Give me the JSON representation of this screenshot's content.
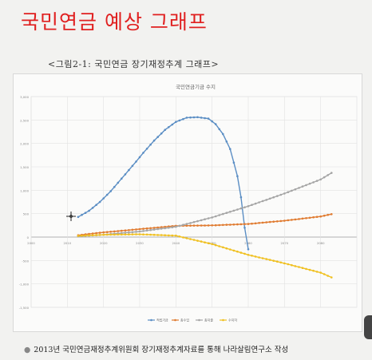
{
  "page": {
    "title": "국민연금 예상 그래프",
    "figure_caption": "<그림2-1: 국민연금 장기재정추계 그래프>",
    "source_note": "2013년 국민연금재정추계위원회 장기재정추계자료를 통해 나라살림연구소 작성"
  },
  "chart_data": {
    "type": "line",
    "title": "국민연금기금 수지",
    "xlim": [
      2000,
      2090
    ],
    "ylim": [
      -1500,
      3000
    ],
    "x_ticks": [
      "2000",
      "2010",
      "2020",
      "2030",
      "2040",
      "2050",
      "2060",
      "2070",
      "2080"
    ],
    "y_ticks": [
      "3,000",
      "2,500",
      "2,000",
      "1,500",
      "1,000",
      "500",
      "0",
      "-500",
      "-1,000",
      "-1,500"
    ],
    "grid": true,
    "legend_position": "bottom",
    "series": [
      {
        "name": "적립기금",
        "color": "#5b8ec4",
        "x": [
          2013,
          2016,
          2019,
          2022,
          2025,
          2028,
          2031,
          2034,
          2037,
          2040,
          2043,
          2046,
          2049,
          2051,
          2053,
          2055,
          2057,
          2058,
          2059,
          2060
        ],
        "y": [
          430,
          560,
          750,
          980,
          1250,
          1520,
          1800,
          2060,
          2290,
          2460,
          2550,
          2560,
          2530,
          2410,
          2200,
          1880,
          1300,
          850,
          200,
          -260
        ]
      },
      {
        "name": "총수입",
        "color": "#e07b30",
        "x": [
          2013,
          2020,
          2030,
          2040,
          2050,
          2060,
          2070,
          2080,
          2083
        ],
        "y": [
          40,
          100,
          170,
          240,
          250,
          280,
          350,
          440,
          490
        ]
      },
      {
        "name": "총지출",
        "color": "#a5a5a5",
        "x": [
          2013,
          2020,
          2030,
          2040,
          2050,
          2060,
          2070,
          2080,
          2083
        ],
        "y": [
          15,
          50,
          120,
          220,
          420,
          660,
          930,
          1230,
          1370
        ]
      },
      {
        "name": "수지차",
        "color": "#f0c020",
        "x": [
          2013,
          2020,
          2030,
          2040,
          2050,
          2060,
          2070,
          2080,
          2083
        ],
        "y": [
          25,
          50,
          60,
          30,
          -150,
          -380,
          -560,
          -760,
          -860
        ]
      }
    ]
  }
}
